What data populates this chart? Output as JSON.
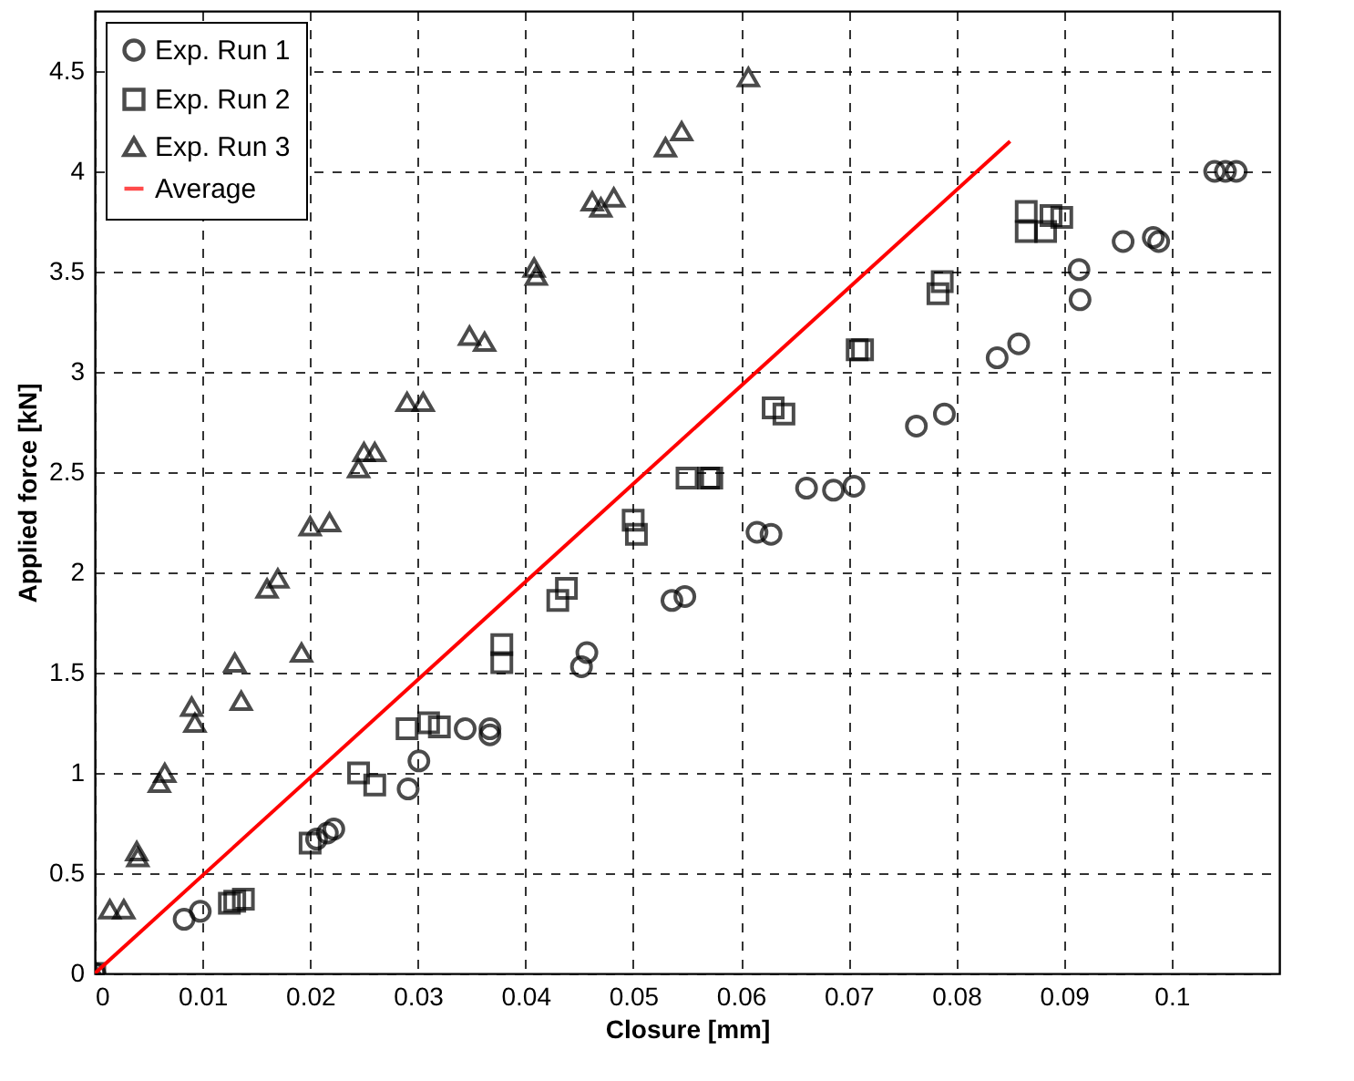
{
  "chart_data": {
    "type": "scatter",
    "xlabel": "Closure [mm]",
    "ylabel": "Applied force [kN]",
    "xlim": [
      0,
      0.11
    ],
    "ylim": [
      0,
      4.8
    ],
    "xticks": [
      0,
      0.01,
      0.02,
      0.03,
      0.04,
      0.05,
      0.06,
      0.07,
      0.08,
      0.09,
      0.1
    ],
    "yticks": [
      0,
      0.5,
      1,
      1.5,
      2,
      2.5,
      3,
      3.5,
      4,
      4.5
    ],
    "grid": true,
    "legend": "top left",
    "series": [
      {
        "name": "Exp. Run 1",
        "color": "#000000",
        "marker": "circle",
        "x": [
          0,
          0.0083,
          0.0098,
          0.0206,
          0.0216,
          0.0222,
          0.0291,
          0.0301,
          0.0344,
          0.0367,
          0.0367,
          0.0452,
          0.0457,
          0.0536,
          0.0548,
          0.0615,
          0.0628,
          0.0661,
          0.0686,
          0.0705,
          0.0763,
          0.0789,
          0.0838,
          0.0858,
          0.0914,
          0.0915,
          0.0955,
          0.0983,
          0.0988,
          0.104,
          0.105,
          0.106
        ],
        "values": [
          0,
          0.27,
          0.31,
          0.67,
          0.7,
          0.72,
          0.92,
          1.06,
          1.22,
          1.22,
          1.19,
          1.53,
          1.6,
          1.86,
          1.88,
          2.2,
          2.19,
          2.42,
          2.41,
          2.43,
          2.73,
          2.79,
          3.07,
          3.14,
          3.51,
          3.36,
          3.65,
          3.67,
          3.65,
          4.0,
          4.0,
          4.0
        ]
      },
      {
        "name": "Exp. Run 2",
        "color": "#000000",
        "marker": "square",
        "x": [
          0,
          0.0125,
          0.013,
          0.0138,
          0.02,
          0.0245,
          0.026,
          0.029,
          0.031,
          0.032,
          0.0378,
          0.0378,
          0.043,
          0.0438,
          0.05,
          0.0503,
          0.055,
          0.057,
          0.0573,
          0.063,
          0.064,
          0.0708,
          0.0713,
          0.0783,
          0.0787,
          0.0865,
          0.0865,
          0.0883,
          0.0888,
          0.0898
        ],
        "values": [
          0,
          0.35,
          0.36,
          0.37,
          0.65,
          1.0,
          0.94,
          1.22,
          1.25,
          1.23,
          1.64,
          1.55,
          1.86,
          1.92,
          2.26,
          2.19,
          2.47,
          2.47,
          2.47,
          2.82,
          2.79,
          3.11,
          3.11,
          3.39,
          3.45,
          3.8,
          3.7,
          3.7,
          3.78,
          3.77
        ]
      },
      {
        "name": "Exp. Run 3",
        "color": "#000000",
        "marker": "triangle",
        "x": [
          0,
          0.0014,
          0.0027,
          0.0039,
          0.004,
          0.006,
          0.0065,
          0.009,
          0.0093,
          0.013,
          0.0136,
          0.0192,
          0.016,
          0.017,
          0.02,
          0.0218,
          0.0245,
          0.025,
          0.026,
          0.029,
          0.0305,
          0.0348,
          0.0362,
          0.0408,
          0.041,
          0.0462,
          0.047,
          0.0482,
          0.053,
          0.0545,
          0.0607
        ],
        "values": [
          0,
          0.32,
          0.32,
          0.61,
          0.58,
          0.95,
          1.0,
          1.33,
          1.25,
          1.55,
          1.36,
          1.6,
          1.92,
          1.97,
          2.23,
          2.25,
          2.52,
          2.6,
          2.6,
          2.85,
          2.85,
          3.18,
          3.15,
          3.52,
          3.48,
          3.85,
          3.82,
          3.87,
          4.12,
          4.2,
          4.47
        ]
      },
      {
        "name": "Average",
        "type": "line",
        "color": "#ff0000",
        "marker": "none",
        "line_style": "solid",
        "x": [
          0,
          0.085
        ],
        "values": [
          0,
          4.15
        ]
      }
    ]
  }
}
